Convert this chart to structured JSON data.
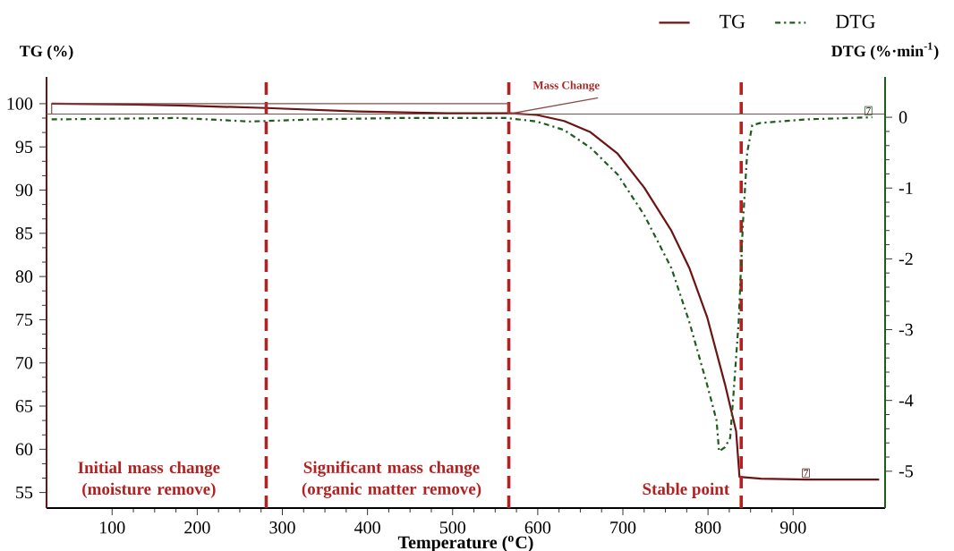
{
  "chart_data": {
    "type": "line",
    "xlabel": "Temperature ($^{o}$C)",
    "ylabel": "TG (%)",
    "y2label": "DTG (%·min$^{-1}$)",
    "xlim": [
      23,
      1008
    ],
    "ylim": [
      53.2,
      103.1
    ],
    "y2lim": [
      -5.52,
      0.57
    ],
    "xticks": [
      100,
      200,
      300,
      400,
      500,
      600,
      700,
      800,
      900
    ],
    "yticks": [
      55,
      60,
      65,
      70,
      75,
      80,
      85,
      90,
      95,
      100
    ],
    "y2ticks": [
      -5,
      -4,
      -3,
      -2,
      -1,
      0
    ],
    "legend": "top right",
    "marker": "none",
    "series": [
      {
        "name": "TG",
        "color": "#6b1414",
        "line_style": "solid",
        "x": [
          29,
          126,
          179,
          281,
          389,
          494,
          568,
          599,
          631,
          662,
          694,
          725,
          757,
          778,
          799,
          820,
          833,
          837,
          862,
          915,
          1001
        ],
        "values": [
          100.0,
          99.9,
          99.8,
          99.5,
          99.1,
          98.9,
          98.9,
          98.7,
          98.0,
          96.7,
          94.2,
          90.3,
          85.3,
          81.0,
          75.3,
          67.5,
          62.1,
          56.8,
          56.6,
          56.5,
          56.5
        ]
      },
      {
        "name": "DTG",
        "color": "#1e5c1e",
        "line_style": "dashdot",
        "axis": "y2",
        "x": [
          29,
          179,
          263,
          336,
          442,
          563,
          599,
          631,
          662,
          694,
          725,
          757,
          778,
          799,
          810,
          813,
          820,
          826,
          830,
          836,
          841,
          846,
          852,
          862,
          915,
          993
        ],
        "values": [
          -0.03,
          -0.01,
          -0.06,
          -0.03,
          -0.01,
          -0.01,
          -0.06,
          -0.18,
          -0.43,
          -0.81,
          -1.38,
          -2.13,
          -2.89,
          -3.78,
          -4.28,
          -4.72,
          -4.66,
          -4.53,
          -3.9,
          -2.89,
          -1.5,
          -0.5,
          -0.11,
          -0.08,
          -0.03,
          0.0
        ]
      }
    ],
    "ref_lines": [
      {
        "axis": "x",
        "value": 281,
        "label": "Initial mass change (moisture remove)",
        "color": "#b22222",
        "line_style": "dashed"
      },
      {
        "axis": "x",
        "value": 566,
        "label": "Significant mass change (organic matter remove)",
        "color": "#b22222",
        "line_style": "dashed"
      },
      {
        "axis": "x",
        "value": 839,
        "label": "Stable point",
        "color": "#b22222",
        "line_style": "dashed"
      },
      {
        "axis": "y",
        "value": 98.8,
        "color": "#8b4a4a",
        "line_style": "solid"
      }
    ],
    "annotations": [
      "Mass Change",
      "7",
      "7"
    ]
  }
}
